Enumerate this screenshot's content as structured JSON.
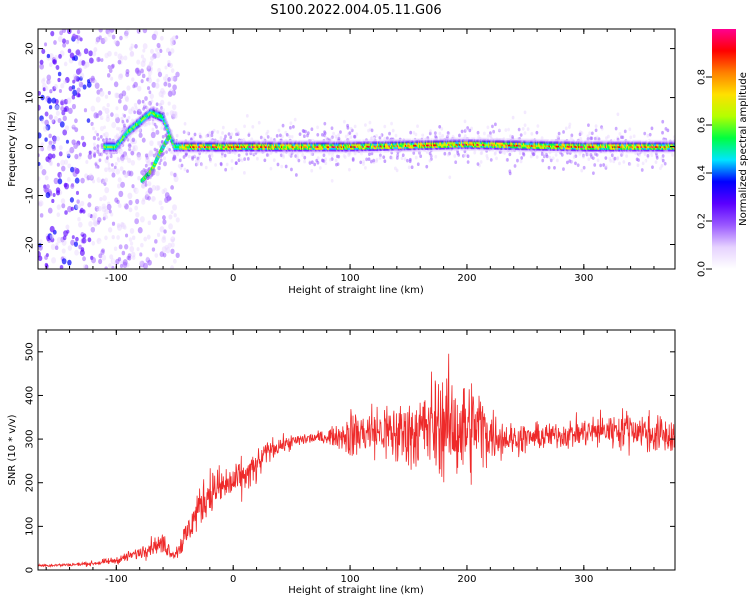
{
  "title": "S100.2022.004.05.11.G06",
  "chart_data": [
    {
      "type": "heatmap",
      "xlabel": "Height of straight line (km)",
      "ylabel": "Frequency (Hz)",
      "xlim": [
        -167,
        378
      ],
      "ylim": [
        -25,
        24
      ],
      "xticks": [
        -100,
        0,
        100,
        200,
        300
      ],
      "yticks": [
        -20,
        -10,
        0,
        10,
        20
      ],
      "colorbar": {
        "label": "Normalized spectral amplitude",
        "range": [
          0,
          1
        ],
        "ticks": [
          0.0,
          0.2,
          0.4,
          0.6,
          0.8
        ],
        "tick_labels": [
          "0.0",
          "0.2",
          "0.4",
          "0.6",
          "0.8"
        ],
        "colormap": [
          "#ffffff",
          "#e6d2ff",
          "#9b59ff",
          "#5a00ff",
          "#0000ff",
          "#00e5ff",
          "#00ff40",
          "#b4ff00",
          "#ffe000",
          "#ff8000",
          "#ff0000",
          "#ff0090"
        ]
      },
      "ridge": [
        {
          "x": -100,
          "y": 0
        },
        {
          "x": -90,
          "y": 3
        },
        {
          "x": -80,
          "y": 5
        },
        {
          "x": -70,
          "y": 7
        },
        {
          "x": -60,
          "y": 6
        },
        {
          "x": -55,
          "y": 3
        },
        {
          "x": -50,
          "y": 0
        },
        {
          "x": -40,
          "y": 0
        },
        {
          "x": 100,
          "y": 0
        },
        {
          "x": 200,
          "y": 0.5
        },
        {
          "x": 300,
          "y": 0
        },
        {
          "x": 378,
          "y": 0
        }
      ],
      "lower_branch": [
        {
          "x": -78,
          "y": -7
        },
        {
          "x": -70,
          "y": -5
        },
        {
          "x": -62,
          "y": -1
        },
        {
          "x": -55,
          "y": 2
        }
      ]
    },
    {
      "type": "line",
      "xlabel": "Height of straight line (km)",
      "ylabel": "SNR (10 * v/v)",
      "xlim": [
        -167,
        378
      ],
      "ylim": [
        0,
        550
      ],
      "xticks": [
        -100,
        0,
        100,
        200,
        300
      ],
      "yticks": [
        0,
        100,
        200,
        300,
        400,
        500
      ],
      "line_color": "#ee2a2a",
      "series": [
        {
          "x": [
            -167,
            -140,
            -120,
            -100,
            -80,
            -70,
            -60,
            -50,
            -40,
            -30,
            -20,
            -10,
            0,
            10,
            20,
            30,
            40,
            60,
            80,
            90,
            100,
            110,
            120,
            140,
            160,
            170,
            180,
            190,
            200,
            210,
            220,
            240,
            260,
            280,
            300,
            320,
            340,
            360,
            378
          ],
          "values": [
            10,
            12,
            15,
            22,
            40,
            55,
            60,
            35,
            80,
            140,
            180,
            190,
            200,
            215,
            235,
            275,
            285,
            300,
            305,
            308,
            310,
            315,
            318,
            310,
            320,
            330,
            335,
            325,
            320,
            330,
            310,
            300,
            305,
            310,
            315,
            320,
            325,
            310,
            305
          ],
          "noise": [
            3,
            4,
            5,
            8,
            15,
            20,
            22,
            15,
            35,
            45,
            55,
            45,
            45,
            40,
            40,
            25,
            18,
            15,
            15,
            25,
            55,
            55,
            65,
            75,
            90,
            110,
            120,
            120,
            120,
            100,
            60,
            35,
            30,
            30,
            35,
            40,
            45,
            45,
            45
          ]
        }
      ]
    }
  ]
}
